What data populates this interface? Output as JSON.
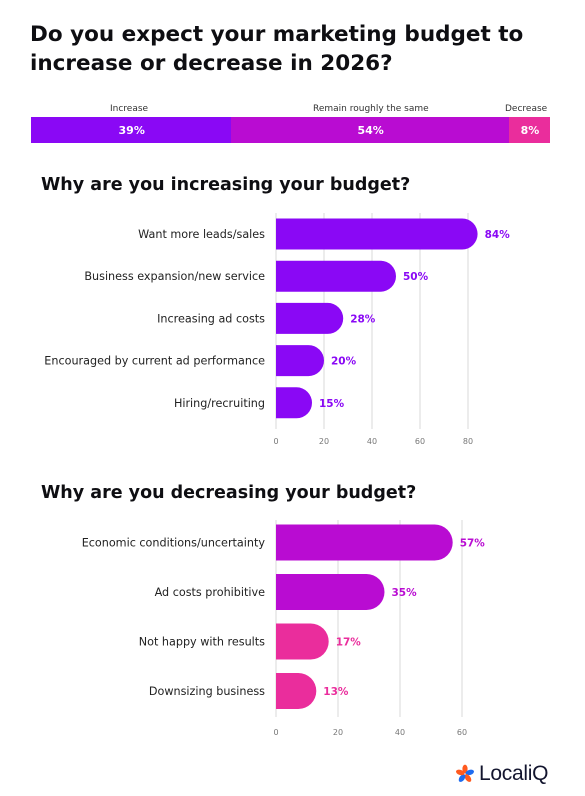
{
  "title": "Do you expect your marketing budget to increase or decrease in 2026?",
  "colors": {
    "increase": "#8a08f5",
    "remain": "#b90cd2",
    "decrease": "#ea2d9c",
    "grid": "#d9d9d9",
    "tick": "#777777"
  },
  "chart_data": [
    {
      "type": "bar",
      "orientation": "horizontal-stacked",
      "categories": [
        "Increase",
        "Remain roughly the same",
        "Decrease"
      ],
      "values": [
        39,
        54,
        8
      ],
      "labels": [
        "39%",
        "54%",
        "8%"
      ]
    },
    {
      "type": "bar",
      "orientation": "horizontal",
      "title": "Why are you increasing your budget?",
      "categories": [
        "Want more leads/sales",
        "Business expansion/new service",
        "Increasing ad costs",
        "Encouraged by current ad performance",
        "Hiring/recruiting"
      ],
      "values": [
        84,
        50,
        28,
        20,
        15
      ],
      "labels": [
        "84%",
        "50%",
        "28%",
        "20%",
        "15%"
      ],
      "xticks": [
        "0",
        "20",
        "40",
        "60",
        "80"
      ],
      "xlim": [
        0,
        84
      ]
    },
    {
      "type": "bar",
      "orientation": "horizontal",
      "title": "Why are you decreasing your budget?",
      "categories": [
        "Economic conditions/uncertainty",
        "Ad costs prohibitive",
        "Not happy with results",
        "Downsizing business"
      ],
      "values": [
        57,
        35,
        17,
        13
      ],
      "labels": [
        "57%",
        "35%",
        "17%",
        "13%"
      ],
      "xticks": [
        "0",
        "20",
        "40",
        "60"
      ],
      "xlim": [
        0,
        57
      ]
    }
  ],
  "logo": {
    "text": "LocaliQ",
    "icon": "asterisk-flower-icon"
  }
}
